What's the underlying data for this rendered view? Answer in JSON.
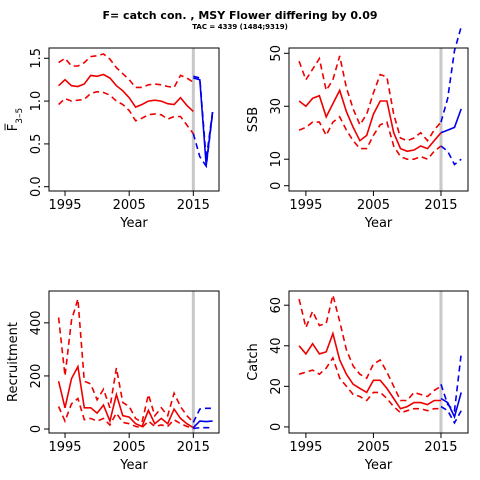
{
  "page": {
    "title": "F= catch con. , MSY Flower differing by 0.09",
    "subtitle": "TAC = 4339 (1484;9319)"
  },
  "colors": {
    "historic": "#ee0000",
    "projection": "#0000ee",
    "divider": "#c8c8c8"
  },
  "chart_data": [
    {
      "id": "fbar",
      "type": "line",
      "ylabel": "F̅",
      "ylabel_sub": "3–5",
      "xlabel": "Year",
      "xlim": [
        1992.5,
        2019
      ],
      "ylim": [
        -0.05,
        1.62
      ],
      "xticks": [
        1995,
        2005,
        2015
      ],
      "yticks": [
        0,
        0.5,
        1,
        1.5
      ],
      "ytick_labels": [
        "0.0",
        "0.5",
        "1.0",
        "1.5"
      ],
      "divider_x": 2015,
      "historic": {
        "years": [
          1994,
          1995,
          1996,
          1997,
          1998,
          1999,
          2000,
          2001,
          2002,
          2003,
          2004,
          2005,
          2006,
          2007,
          2008,
          2009,
          2010,
          2011,
          2012,
          2013,
          2014,
          2015
        ],
        "median": [
          1.18,
          1.25,
          1.18,
          1.17,
          1.2,
          1.3,
          1.29,
          1.31,
          1.27,
          1.18,
          1.12,
          1.04,
          0.93,
          0.96,
          1.0,
          1.01,
          1.0,
          0.97,
          0.96,
          1.04,
          0.95,
          0.88
        ],
        "upper": [
          1.45,
          1.5,
          1.41,
          1.41,
          1.45,
          1.52,
          1.53,
          1.55,
          1.49,
          1.39,
          1.32,
          1.25,
          1.16,
          1.16,
          1.19,
          1.2,
          1.19,
          1.17,
          1.16,
          1.3,
          1.27,
          1.22
        ],
        "lower": [
          0.96,
          1.03,
          1.0,
          1.01,
          1.02,
          1.09,
          1.11,
          1.1,
          1.07,
          1.0,
          0.96,
          0.89,
          0.77,
          0.8,
          0.84,
          0.85,
          0.84,
          0.79,
          0.82,
          0.82,
          0.72,
          0.62
        ]
      },
      "projection": {
        "years": [
          2015,
          2016,
          2017,
          2018
        ],
        "median": [
          1.27,
          1.25,
          0.25,
          0.87
        ],
        "upper": [
          1.29,
          1.27,
          0.32,
          0.88
        ],
        "lower": [
          0.62,
          0.35,
          0.24,
          0.86
        ]
      }
    },
    {
      "id": "ssb",
      "type": "line",
      "ylabel": "SSB",
      "xlabel": "Year",
      "xlim": [
        1992.5,
        2019
      ],
      "ylim": [
        -2,
        52
      ],
      "xticks": [
        1995,
        2005,
        2015
      ],
      "yticks": [
        0,
        10,
        30,
        50
      ],
      "ytick_labels": [
        "0",
        "10",
        "30",
        "50"
      ],
      "divider_x": 2015,
      "historic": {
        "years": [
          1994,
          1995,
          1996,
          1997,
          1998,
          1999,
          2000,
          2001,
          2002,
          2003,
          2004,
          2005,
          2006,
          2007,
          2008,
          2009,
          2010,
          2011,
          2012,
          2013,
          2014,
          2015
        ],
        "median": [
          32,
          30,
          33,
          34,
          26,
          31,
          36,
          28,
          22,
          17,
          19,
          27,
          32,
          32,
          20,
          14,
          13,
          13.5,
          15,
          14,
          17,
          20
        ],
        "upper": [
          47,
          40,
          44,
          48,
          36,
          40,
          49,
          37,
          29,
          23,
          27,
          35,
          42,
          41,
          27,
          18,
          17,
          18,
          20,
          17,
          21,
          24
        ],
        "lower": [
          21,
          22,
          24,
          24,
          19,
          24,
          26,
          21,
          17,
          14,
          14,
          19,
          23,
          24,
          15,
          11,
          10,
          10,
          11,
          10,
          13,
          15
        ]
      },
      "projection": {
        "years": [
          2015,
          2016,
          2017,
          2018
        ],
        "median": [
          20,
          21,
          22,
          29
        ],
        "upper": [
          24,
          33,
          51,
          60
        ],
        "lower": [
          15,
          13,
          8,
          10
        ]
      }
    },
    {
      "id": "recruitment",
      "type": "line",
      "ylabel": "Recruitment",
      "xlabel": "Year",
      "xlim": [
        1992.5,
        2019
      ],
      "ylim": [
        -15,
        520
      ],
      "xticks": [
        1995,
        2005,
        2015
      ],
      "yticks": [
        0,
        200,
        400
      ],
      "ytick_labels": [
        "0",
        "200",
        "400"
      ],
      "divider_x": 2015,
      "historic": {
        "years": [
          1994,
          1995,
          1996,
          1997,
          1998,
          1999,
          2000,
          2001,
          2002,
          2003,
          2004,
          2005,
          2006,
          2007,
          2008,
          2009,
          2010,
          2011,
          2012,
          2013,
          2014,
          2015
        ],
        "median": [
          180,
          80,
          190,
          235,
          80,
          80,
          60,
          90,
          30,
          130,
          50,
          45,
          20,
          10,
          70,
          20,
          40,
          20,
          75,
          40,
          20,
          5
        ],
        "upper": [
          420,
          200,
          410,
          490,
          180,
          170,
          110,
          150,
          80,
          230,
          100,
          85,
          40,
          25,
          130,
          50,
          80,
          50,
          135,
          85,
          50,
          25
        ],
        "lower": [
          85,
          30,
          95,
          115,
          35,
          40,
          30,
          40,
          15,
          60,
          25,
          20,
          10,
          5,
          30,
          10,
          15,
          10,
          35,
          20,
          10,
          2
        ]
      },
      "projection": {
        "years": [
          2015,
          2016,
          2017,
          2018
        ],
        "median": [
          5,
          30,
          28,
          30
        ],
        "upper": [
          25,
          75,
          78,
          78
        ],
        "lower": [
          2,
          5,
          5,
          5
        ]
      }
    },
    {
      "id": "catch",
      "type": "line",
      "ylabel": "Catch",
      "xlabel": "Year",
      "xlim": [
        1992.5,
        2019
      ],
      "ylim": [
        -3,
        67
      ],
      "xticks": [
        1995,
        2005,
        2015
      ],
      "yticks": [
        0,
        20,
        40,
        60
      ],
      "ytick_labels": [
        "0",
        "20",
        "40",
        "60"
      ],
      "divider_x": 2015,
      "historic": {
        "years": [
          1994,
          1995,
          1996,
          1997,
          1998,
          1999,
          2000,
          2001,
          2002,
          2003,
          2004,
          2005,
          2006,
          2007,
          2008,
          2009,
          2010,
          2011,
          2012,
          2013,
          2014,
          2015
        ],
        "median": [
          40,
          36,
          41,
          36,
          37,
          46,
          33,
          26,
          21,
          19,
          17,
          23,
          23,
          19,
          14,
          9,
          10,
          12,
          12,
          11,
          13,
          13
        ],
        "upper": [
          63,
          49,
          57,
          50,
          51,
          65,
          52,
          38,
          30,
          26,
          24,
          31,
          33,
          27,
          20,
          13,
          13,
          17,
          16,
          15,
          18,
          20
        ],
        "lower": [
          26,
          27,
          28,
          26,
          29,
          34,
          24,
          20,
          16,
          15,
          13,
          17,
          17,
          14,
          10,
          7,
          8,
          9,
          9,
          8,
          9,
          9
        ]
      },
      "projection": {
        "years": [
          2015,
          2016,
          2017,
          2018
        ],
        "median": [
          14,
          12,
          5,
          17
        ],
        "upper": [
          21,
          11,
          8,
          36
        ],
        "lower": [
          10,
          8,
          2,
          8
        ]
      }
    }
  ]
}
